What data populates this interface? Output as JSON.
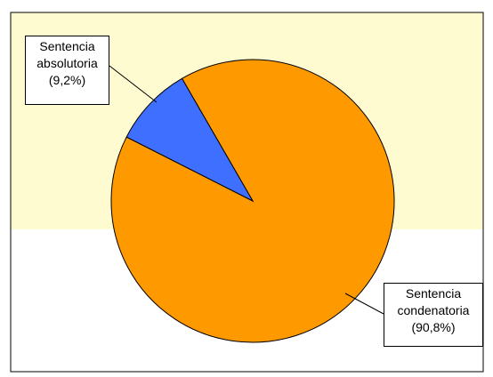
{
  "chart_data": {
    "type": "pie",
    "slices": [
      {
        "label_line1": "Sentencia",
        "label_line2": "absolutoria",
        "value": 9.2,
        "pct_text": "(9,2%)",
        "color": "#3f6fff"
      },
      {
        "label_line1": "Sentencia",
        "label_line2": "condenatoria",
        "value": 90.8,
        "pct_text": "(90,8%)",
        "color": "#ff9900"
      }
    ],
    "legend": "none",
    "colors": {
      "background_band": "#fffbd0",
      "background_lower": "#ffffff",
      "frame": "#000000"
    }
  }
}
